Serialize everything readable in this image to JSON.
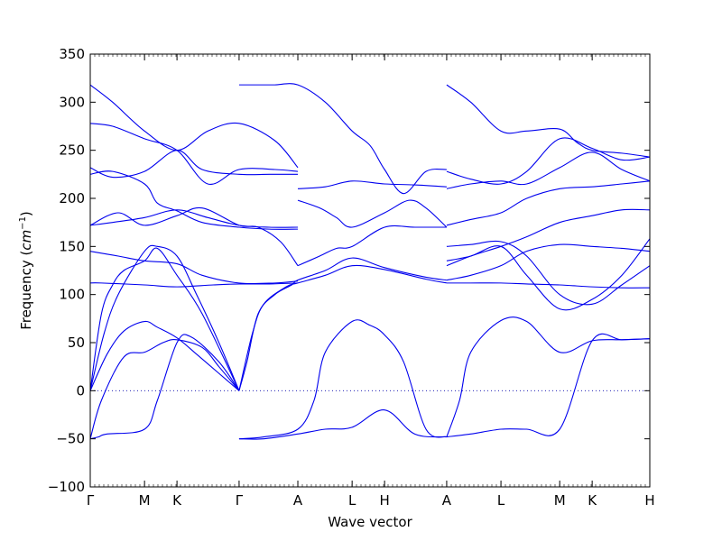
{
  "chart_data": {
    "type": "line",
    "title": "",
    "xlabel": "Wave vector",
    "ylabel": "Frequency",
    "ylabel_unit": "cm",
    "ylabel_unit_exp": "−1",
    "ylim": [
      -100,
      350
    ],
    "yticks": [
      -100,
      -50,
      0,
      50,
      100,
      150,
      200,
      250,
      300,
      350
    ],
    "xlim": [
      0,
      1
    ],
    "x_ticks": [
      {
        "label": "Γ",
        "x": 0.0
      },
      {
        "label": "M",
        "x": 0.097
      },
      {
        "label": "K",
        "x": 0.155
      },
      {
        "label": "Γ",
        "x": 0.266
      },
      {
        "label": "A",
        "x": 0.371
      },
      {
        "label": "L",
        "x": 0.468
      },
      {
        "label": "H",
        "x": 0.526
      },
      {
        "label": "A",
        "x": 0.637
      },
      {
        "label": "L",
        "x": 0.734
      },
      {
        "label": "M",
        "x": 0.839
      },
      {
        "label": "K",
        "x": 0.897
      },
      {
        "label": "H",
        "x": 1.0
      }
    ],
    "zero_line": true,
    "line_color": "#0000ee",
    "series": [
      {
        "x": [
          0,
          0.03,
          0.06,
          0.097,
          0.12,
          0.155,
          0.19,
          0.23,
          0.266
        ],
        "y": [
          0,
          38,
          62,
          72,
          66,
          55,
          38,
          18,
          0
        ]
      },
      {
        "x": [
          0,
          0.025,
          0.05,
          0.097,
          0.12,
          0.155,
          0.19,
          0.23,
          0.266
        ],
        "y": [
          0,
          60,
          100,
          145,
          150,
          140,
          100,
          50,
          0
        ]
      },
      {
        "x": [
          0,
          0.02,
          0.04,
          0.06,
          0.097,
          0.12,
          0.155,
          0.2,
          0.266
        ],
        "y": [
          0,
          80,
          110,
          125,
          135,
          148,
          120,
          80,
          0
        ]
      },
      {
        "x": [
          0,
          0.015,
          0.03,
          0.097,
          0.12,
          0.155,
          0.18,
          0.23,
          0.266
        ],
        "y": [
          -50,
          -48,
          -45,
          -40,
          -10,
          50,
          56,
          30,
          0
        ]
      },
      {
        "x": [
          0,
          0.02,
          0.06,
          0.097,
          0.13,
          0.155,
          0.2,
          0.23,
          0.266
        ],
        "y": [
          -50,
          -10,
          35,
          40,
          50,
          53,
          45,
          25,
          0
        ]
      },
      {
        "x": [
          0,
          0.02,
          0.097,
          0.155,
          0.22,
          0.266,
          0.32,
          0.371
        ],
        "y": [
          112,
          112,
          110,
          108,
          110,
          111,
          111,
          112
        ]
      },
      {
        "x": [
          0,
          0.05,
          0.097,
          0.155,
          0.2,
          0.266,
          0.33,
          0.371
        ],
        "y": [
          145,
          140,
          135,
          132,
          120,
          112,
          112,
          114
        ]
      },
      {
        "x": [
          0,
          0.05,
          0.097,
          0.155,
          0.2,
          0.266,
          0.3,
          0.34,
          0.371
        ],
        "y": [
          172,
          185,
          172,
          182,
          190,
          172,
          170,
          155,
          130
        ]
      },
      {
        "x": [
          0,
          0.04,
          0.097,
          0.155,
          0.21,
          0.266,
          0.32,
          0.371
        ],
        "y": [
          172,
          175,
          180,
          188,
          180,
          172,
          170,
          170
        ]
      },
      {
        "x": [
          0,
          0.04,
          0.097,
          0.12,
          0.155,
          0.2,
          0.266,
          0.32,
          0.371
        ],
        "y": [
          225,
          228,
          215,
          195,
          187,
          175,
          170,
          168,
          168
        ]
      },
      {
        "x": [
          0,
          0.04,
          0.097,
          0.155,
          0.2,
          0.266,
          0.32,
          0.371
        ],
        "y": [
          232,
          222,
          228,
          250,
          230,
          225,
          225,
          225
        ]
      },
      {
        "x": [
          0,
          0.04,
          0.097,
          0.155,
          0.21,
          0.266,
          0.33,
          0.371
        ],
        "y": [
          278,
          275,
          262,
          250,
          215,
          230,
          230,
          228
        ]
      },
      {
        "x": [
          0,
          0.04,
          0.097,
          0.155,
          0.21,
          0.266,
          0.33,
          0.371
        ],
        "y": [
          318,
          300,
          270,
          250,
          270,
          278,
          260,
          232
        ]
      },
      {
        "x": [
          0.266,
          0.3,
          0.33,
          0.371,
          0.42,
          0.468,
          0.5,
          0.526,
          0.56,
          0.6,
          0.637
        ],
        "y": [
          318,
          318,
          318,
          318,
          300,
          270,
          255,
          230,
          205,
          228,
          230
        ]
      },
      {
        "x": [
          0.266,
          0.28,
          0.3,
          0.33,
          0.36,
          0.371,
          0.42,
          0.468,
          0.526,
          0.6,
          0.637
        ],
        "y": [
          0,
          30,
          80,
          100,
          110,
          115,
          125,
          138,
          128,
          118,
          115
        ]
      },
      {
        "x": [
          0.266,
          0.29,
          0.31,
          0.35,
          0.371,
          0.42,
          0.468,
          0.526,
          0.6,
          0.637
        ],
        "y": [
          0,
          60,
          90,
          108,
          112,
          120,
          130,
          126,
          116,
          112
        ]
      },
      {
        "x": [
          0.266,
          0.31,
          0.371,
          0.42,
          0.468,
          0.526,
          0.58,
          0.637
        ],
        "y": [
          -50,
          -50,
          -45,
          -40,
          -38,
          -20,
          -45,
          -48
        ]
      },
      {
        "x": [
          0.266,
          0.31,
          0.371,
          0.4,
          0.42,
          0.468,
          0.5,
          0.526,
          0.56,
          0.6,
          0.637
        ],
        "y": [
          -50,
          -48,
          -40,
          -10,
          40,
          72,
          68,
          58,
          30,
          -40,
          -48
        ]
      },
      {
        "x": [
          0.371,
          0.41,
          0.44,
          0.468,
          0.526,
          0.57,
          0.6,
          0.637
        ],
        "y": [
          198,
          190,
          180,
          170,
          185,
          198,
          190,
          170
        ]
      },
      {
        "x": [
          0.371,
          0.41,
          0.44,
          0.468,
          0.526,
          0.58,
          0.637
        ],
        "y": [
          130,
          140,
          148,
          150,
          170,
          170,
          170
        ]
      },
      {
        "x": [
          0.371,
          0.42,
          0.468,
          0.526,
          0.58,
          0.637
        ],
        "y": [
          210,
          212,
          218,
          215,
          214,
          212
        ]
      },
      {
        "x": [
          0.637,
          0.68,
          0.734,
          0.78,
          0.839,
          0.87,
          0.897,
          0.95,
          1.0
        ],
        "y": [
          318,
          300,
          270,
          270,
          272,
          258,
          250,
          247,
          243
        ]
      },
      {
        "x": [
          0.637,
          0.68,
          0.734,
          0.78,
          0.839,
          0.897,
          0.95,
          1.0
        ],
        "y": [
          228,
          220,
          215,
          228,
          262,
          252,
          240,
          243
        ]
      },
      {
        "x": [
          0.637,
          0.68,
          0.734,
          0.78,
          0.839,
          0.897,
          0.95,
          1.0
        ],
        "y": [
          210,
          215,
          218,
          215,
          232,
          248,
          230,
          218
        ]
      },
      {
        "x": [
          0.637,
          0.68,
          0.734,
          0.78,
          0.839,
          0.897,
          0.95,
          1.0
        ],
        "y": [
          172,
          178,
          185,
          200,
          210,
          212,
          215,
          218
        ]
      },
      {
        "x": [
          0.637,
          0.68,
          0.734,
          0.78,
          0.839,
          0.897,
          0.95,
          1.0
        ],
        "y": [
          130,
          140,
          150,
          160,
          175,
          182,
          188,
          188
        ]
      },
      {
        "x": [
          0.637,
          0.68,
          0.734,
          0.78,
          0.839,
          0.897,
          0.95,
          1.0
        ],
        "y": [
          115,
          120,
          130,
          145,
          152,
          150,
          148,
          145
        ]
      },
      {
        "x": [
          0.637,
          0.68,
          0.734,
          0.78,
          0.839,
          0.897,
          0.95,
          1.0
        ],
        "y": [
          112,
          112,
          112,
          111,
          110,
          108,
          107,
          107
        ]
      },
      {
        "x": [
          0.637,
          0.66,
          0.68,
          0.734,
          0.78,
          0.839,
          0.897,
          0.95,
          1.0
        ],
        "y": [
          -48,
          -10,
          40,
          73,
          72,
          40,
          52,
          53,
          54
        ]
      },
      {
        "x": [
          0.637,
          0.68,
          0.734,
          0.78,
          0.839,
          0.897,
          0.95,
          1.0
        ],
        "y": [
          -48,
          -45,
          -40,
          -40,
          -40,
          52,
          53,
          54
        ]
      },
      {
        "x": [
          0.637,
          0.68,
          0.734,
          0.78,
          0.839,
          0.897,
          0.95,
          1.0
        ],
        "y": [
          150,
          152,
          155,
          140,
          100,
          90,
          110,
          130
        ]
      },
      {
        "x": [
          0.637,
          0.68,
          0.734,
          0.78,
          0.839,
          0.897,
          0.95,
          1.0
        ],
        "y": [
          135,
          140,
          150,
          120,
          85,
          95,
          120,
          158
        ]
      }
    ]
  }
}
